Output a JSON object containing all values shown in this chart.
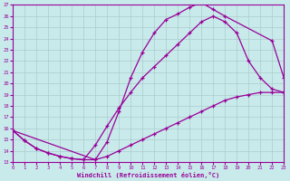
{
  "xlabel": "Windchill (Refroidissement éolien,°C)",
  "xlim": [
    0,
    23
  ],
  "ylim": [
    13,
    27
  ],
  "xticks": [
    0,
    1,
    2,
    3,
    4,
    5,
    6,
    7,
    8,
    9,
    10,
    11,
    12,
    13,
    14,
    15,
    16,
    17,
    18,
    19,
    20,
    21,
    22,
    23
  ],
  "yticks": [
    13,
    14,
    15,
    16,
    17,
    18,
    19,
    20,
    21,
    22,
    23,
    24,
    25,
    26,
    27
  ],
  "bg_color": "#c8eaea",
  "line_color": "#990099",
  "grid_color": "#aacccc",
  "curve1_x": [
    0,
    1,
    2,
    3,
    4,
    5,
    6,
    7,
    8,
    9,
    10,
    11,
    12,
    13,
    14,
    15,
    16,
    17,
    18,
    22,
    23
  ],
  "curve1_y": [
    15.8,
    14.9,
    14.2,
    13.8,
    13.5,
    13.3,
    13.2,
    13.2,
    14.8,
    17.5,
    20.5,
    22.8,
    24.5,
    25.7,
    26.2,
    26.8,
    27.2,
    26.6,
    26.0,
    23.8,
    20.5
  ],
  "curve2_x": [
    0,
    1,
    2,
    3,
    4,
    5,
    6,
    7,
    8,
    9,
    10,
    11,
    12,
    13,
    14,
    15,
    16,
    17,
    18,
    19,
    20,
    21,
    22,
    23
  ],
  "curve2_y": [
    15.8,
    14.9,
    14.2,
    13.8,
    13.5,
    13.3,
    13.2,
    14.5,
    16.2,
    17.8,
    19.2,
    20.5,
    21.5,
    22.5,
    23.5,
    24.5,
    25.5,
    26.0,
    25.5,
    24.5,
    22.0,
    20.5,
    19.5,
    19.2
  ],
  "curve3_x": [
    0,
    7,
    8,
    9,
    10,
    11,
    12,
    13,
    14,
    15,
    16,
    17,
    18,
    19,
    20,
    21,
    22,
    23
  ],
  "curve3_y": [
    15.8,
    13.2,
    13.5,
    14.0,
    14.5,
    15.0,
    15.5,
    16.0,
    16.5,
    17.0,
    17.5,
    18.0,
    18.5,
    18.8,
    19.0,
    19.2,
    19.2,
    19.2
  ]
}
